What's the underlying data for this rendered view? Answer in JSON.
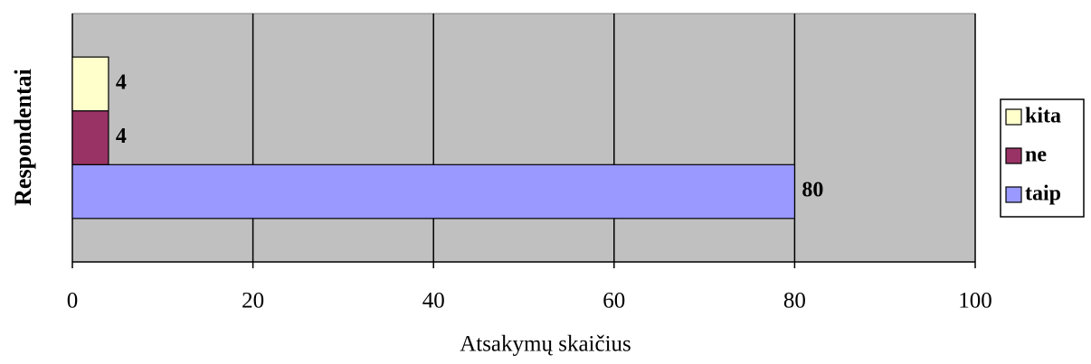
{
  "chart_data": {
    "type": "bar",
    "horizontal": true,
    "x_label": "Atsakymų skaičius",
    "y_label": "Respondentai",
    "categories": [
      null
    ],
    "series": [
      {
        "name": "taip",
        "color": "#9999ff",
        "values": [
          80
        ]
      },
      {
        "name": "ne",
        "color": "#993366",
        "values": [
          4
        ]
      },
      {
        "name": "kita",
        "color": "#ffffcc",
        "values": [
          4
        ]
      }
    ],
    "xlim": [
      0,
      100
    ],
    "xticks": [
      0,
      20,
      40,
      60,
      80,
      100
    ],
    "grid": true,
    "legend": "right"
  }
}
